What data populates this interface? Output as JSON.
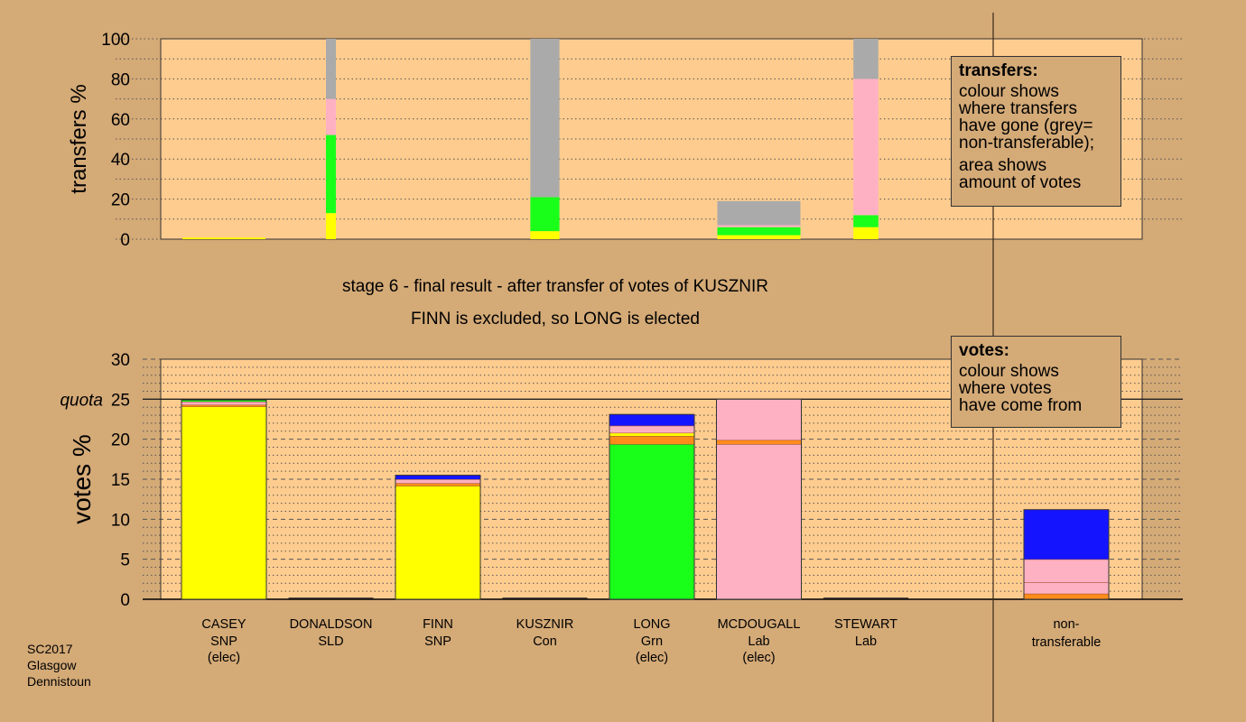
{
  "captions": {
    "stage": "stage 6 - final result - after transfer of votes of KUSZNIR",
    "outcome": "FINN is excluded, so LONG is elected"
  },
  "legend_transfers": {
    "title": "transfers:",
    "lines1": [
      "colour shows",
      "where transfers",
      "have gone (grey=",
      "non-transferable);"
    ],
    "lines2": [
      "area shows",
      "amount of votes"
    ]
  },
  "legend_votes": {
    "title": "votes:",
    "lines": [
      "colour shows",
      "where votes",
      "have come from"
    ]
  },
  "footnote": [
    "SC2017",
    "Glasgow",
    "Dennistoun"
  ],
  "colors": {
    "background": "#d4aa77",
    "plot_bg": "#ffcc8f",
    "SNP": "#ffff00",
    "SLD": "#ff8c1a",
    "Con": "#1414ff",
    "Grn": "#1aff1a",
    "Lab": "#ffb1c4",
    "nontransferable": "#aaaaaa",
    "separator": "#a0522d"
  },
  "chart_data": [
    {
      "type": "bar",
      "panel": "transfers",
      "ylabel": "transfers %",
      "ylim": [
        0,
        100
      ],
      "yticks": [
        0,
        20,
        40,
        60,
        80,
        100
      ],
      "grid": true,
      "columns": [
        {
          "candidate": "CASEY",
          "width_share": 1.0,
          "segments": [
            {
              "party": "SNP",
              "value": 0.8
            }
          ]
        },
        {
          "candidate": "DONALDSON",
          "width_share": 0.12,
          "segments": [
            {
              "party": "SNP",
              "value": 13
            },
            {
              "party": "Grn",
              "value": 39
            },
            {
              "party": "Lab",
              "value": 18
            },
            {
              "party": "nontransferable",
              "value": 30
            }
          ]
        },
        {
          "candidate": "FINN",
          "width_share": 0,
          "segments": []
        },
        {
          "candidate": "KUSZNIR",
          "width_share": 0.35,
          "segments": [
            {
              "party": "SNP",
              "value": 4
            },
            {
              "party": "Grn",
              "value": 17
            },
            {
              "party": "nontransferable",
              "value": 79
            }
          ]
        },
        {
          "candidate": "LONG",
          "width_share": 0,
          "segments": []
        },
        {
          "candidate": "MCDOUGALL",
          "width_share": 1.0,
          "segments": [
            {
              "party": "SNP",
              "value": 2
            },
            {
              "party": "Grn",
              "value": 4
            },
            {
              "party": "Lab",
              "value": 1
            },
            {
              "party": "nontransferable",
              "value": 12
            }
          ]
        },
        {
          "candidate": "STEWART",
          "width_share": 0.3,
          "segments": [
            {
              "party": "SNP",
              "value": 6
            },
            {
              "party": "Grn",
              "value": 6
            },
            {
              "party": "Lab",
              "value": 68
            },
            {
              "party": "nontransferable",
              "value": 20
            }
          ]
        }
      ]
    },
    {
      "type": "bar",
      "panel": "votes",
      "ylabel": "votes %",
      "ylim": [
        0,
        30
      ],
      "yticks": [
        0,
        5,
        10,
        15,
        20,
        25,
        30
      ],
      "quota": 25,
      "quota_label": "quota",
      "grid": true,
      "candidates": [
        {
          "name": "CASEY",
          "party": "SNP",
          "status": "(elec)",
          "segments": [
            {
              "party": "SNP",
              "value": 24.1
            },
            {
              "party": "SLD",
              "value": 0.2
            },
            {
              "party": "Lab",
              "value": 0.4
            },
            {
              "party": "Grn",
              "value": 0.2
            }
          ]
        },
        {
          "name": "DONALDSON",
          "party": "SLD",
          "status": "",
          "segments": []
        },
        {
          "name": "FINN",
          "party": "SNP",
          "status": "",
          "segments": [
            {
              "party": "SNP",
              "value": 14.2
            },
            {
              "party": "SLD",
              "value": 0.3
            },
            {
              "party": "Lab",
              "value": 0.5
            },
            {
              "party": "Con",
              "value": 0.5
            }
          ]
        },
        {
          "name": "KUSZNIR",
          "party": "Con",
          "status": "",
          "segments": []
        },
        {
          "name": "LONG",
          "party": "Grn",
          "status": "(elec)",
          "segments": [
            {
              "party": "Grn",
              "value": 19.4
            },
            {
              "party": "SLD",
              "value": 1.0
            },
            {
              "party": "SNP",
              "value": 0.4
            },
            {
              "party": "Lab",
              "value": 0.9
            },
            {
              "party": "Con",
              "value": 1.4
            }
          ]
        },
        {
          "name": "MCDOUGALL",
          "party": "Lab",
          "status": "(elec)",
          "segments": [
            {
              "party": "Lab",
              "value": 19.4
            },
            {
              "party": "SLD",
              "value": 0.5
            },
            {
              "party": "Lab",
              "value": 5.1
            }
          ]
        },
        {
          "name": "STEWART",
          "party": "Lab",
          "status": "",
          "segments": []
        }
      ],
      "nontransferable": {
        "label_line1": "non-",
        "label_line2": "transferable",
        "segments": [
          {
            "party": "SLD",
            "value": 0.7
          },
          {
            "party": "Lab",
            "value": 1.4
          },
          {
            "party": "Lab",
            "value": 2.9
          },
          {
            "party": "Con",
            "value": 6.2
          }
        ]
      }
    }
  ]
}
